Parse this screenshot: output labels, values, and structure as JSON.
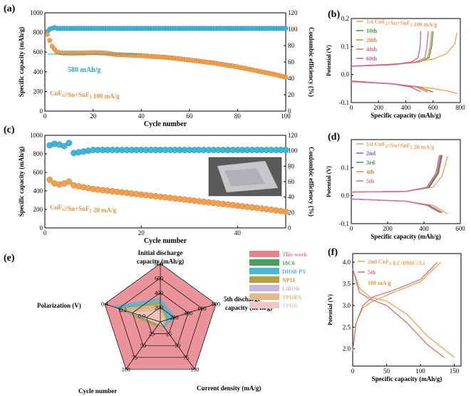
{
  "figure": {
    "panels": [
      {
        "id": "a",
        "label": "(a)"
      },
      {
        "id": "b",
        "label": "(b)"
      },
      {
        "id": "c",
        "label": "(c)"
      },
      {
        "id": "d",
        "label": "(d)"
      },
      {
        "id": "e",
        "label": "(e)"
      },
      {
        "id": "f",
        "label": "(f)"
      }
    ]
  },
  "chart_data": [
    {
      "panel": "a",
      "type": "scatter",
      "xlabel": "Cycle number",
      "ylabel": "Specific capacity (mAh/g)",
      "ylabel2": "Coulombic efficiency (%)",
      "xlim": [
        0,
        100
      ],
      "ylim": [
        0,
        1000
      ],
      "ylim2": [
        0,
        120
      ],
      "xticks": [
        "0",
        "20",
        "40",
        "60",
        "80",
        "100"
      ],
      "yticks": [
        "0",
        "200",
        "400",
        "600",
        "800",
        "1000"
      ],
      "yticks2": [
        "0",
        "20",
        "40",
        "60",
        "80",
        "100",
        "120"
      ],
      "annotations": [
        "580 mAh/g"
      ],
      "legend": "CuF2//Sn+SnF2 100 mA/g",
      "series": [
        {
          "name": "Specific capacity",
          "color": "#f0a050",
          "axis": "left",
          "x": [
            1,
            2,
            3,
            5,
            8,
            10,
            15,
            20,
            25,
            30,
            35,
            40,
            45,
            50,
            55,
            60,
            65,
            70,
            75,
            80,
            85,
            90,
            95,
            100
          ],
          "y": [
            780,
            720,
            660,
            600,
            590,
            590,
            590,
            595,
            590,
            575,
            570,
            565,
            555,
            548,
            535,
            520,
            505,
            490,
            470,
            450,
            425,
            400,
            375,
            345
          ]
        },
        {
          "name": "Coulombic efficiency",
          "color": "#3fb5d8",
          "axis": "right",
          "x": [
            1,
            2,
            3,
            4,
            5,
            10,
            20,
            40,
            60,
            80,
            100
          ],
          "y": [
            97,
            100,
            101,
            102,
            101,
            101,
            101,
            101,
            101,
            101,
            101
          ]
        }
      ]
    },
    {
      "panel": "b",
      "type": "line",
      "xlabel": "Specific capacity (mAh/g)",
      "ylabel": "Potential (V)",
      "xlim": [
        0,
        800
      ],
      "ylim": [
        -0.1,
        0.2
      ],
      "xticks": [
        "0",
        "200",
        "400",
        "600",
        "800"
      ],
      "yticks": [
        "-0.1",
        "0.0",
        "0.1",
        "0.2"
      ],
      "legend": [
        "1st CuF2//Sn+SnF2 100 mA/g",
        "10th",
        "20th",
        "40th",
        "60th"
      ],
      "series": [
        {
          "name": "1st",
          "color": "#f0a050",
          "charge": [
            [
              0,
              0.03
            ],
            [
              200,
              0.035
            ],
            [
              400,
              0.04
            ],
            [
              600,
              0.055
            ],
            [
              700,
              0.075
            ],
            [
              760,
              0.11
            ],
            [
              775,
              0.15
            ]
          ],
          "discharge": [
            [
              0,
              -0.022
            ],
            [
              200,
              -0.03
            ],
            [
              400,
              -0.038
            ],
            [
              600,
              -0.05
            ],
            [
              700,
              -0.058
            ],
            [
              780,
              -0.068
            ]
          ]
        },
        {
          "name": "10th",
          "color": "#3a9a48",
          "charge": [
            [
              0,
              0.03
            ],
            [
              300,
              0.035
            ],
            [
              500,
              0.045
            ],
            [
              570,
              0.06
            ],
            [
              590,
              0.1
            ],
            [
              600,
              0.155
            ]
          ],
          "discharge": [
            [
              0,
              -0.025
            ],
            [
              300,
              -0.033
            ],
            [
              500,
              -0.045
            ],
            [
              600,
              -0.062
            ]
          ]
        },
        {
          "name": "20th",
          "color": "#e8823a",
          "charge": [
            [
              0,
              0.03
            ],
            [
              300,
              0.035
            ],
            [
              500,
              0.045
            ],
            [
              560,
              0.06
            ],
            [
              580,
              0.1
            ],
            [
              590,
              0.155
            ]
          ],
          "discharge": [
            [
              0,
              -0.025
            ],
            [
              300,
              -0.033
            ],
            [
              500,
              -0.045
            ],
            [
              590,
              -0.062
            ]
          ]
        },
        {
          "name": "40th",
          "color": "#d8707a",
          "charge": [
            [
              0,
              0.03
            ],
            [
              300,
              0.035
            ],
            [
              480,
              0.045
            ],
            [
              540,
              0.06
            ],
            [
              555,
              0.1
            ],
            [
              565,
              0.155
            ]
          ],
          "discharge": [
            [
              0,
              -0.025
            ],
            [
              300,
              -0.033
            ],
            [
              480,
              -0.045
            ],
            [
              560,
              -0.062
            ]
          ]
        },
        {
          "name": "60th",
          "color": "#c060b0",
          "charge": [
            [
              0,
              0.03
            ],
            [
              300,
              0.035
            ],
            [
              440,
              0.045
            ],
            [
              490,
              0.06
            ],
            [
              505,
              0.1
            ],
            [
              510,
              0.155
            ]
          ],
          "discharge": [
            [
              0,
              -0.025
            ],
            [
              300,
              -0.033
            ],
            [
              440,
              -0.045
            ],
            [
              510,
              -0.062
            ]
          ]
        }
      ]
    },
    {
      "panel": "c",
      "type": "scatter",
      "xlabel": "Cycle number",
      "ylabel": "Specific capacity (mAh/g)",
      "ylabel2": "Coulombic efficiency (%)",
      "xlim": [
        0,
        50
      ],
      "ylim": [
        0,
        1000
      ],
      "ylim2": [
        0,
        120
      ],
      "xticks": [
        "0",
        "20",
        "40"
      ],
      "yticks": [
        "0",
        "200",
        "400",
        "600",
        "800",
        "1000"
      ],
      "yticks2": [
        "0",
        "20",
        "40",
        "60",
        "80",
        "100",
        "120"
      ],
      "legend": "CuF2//Sn+SnF2 20 mA/g",
      "series": [
        {
          "name": "Specific capacity",
          "color": "#f0a050",
          "axis": "left",
          "x": [
            1,
            2,
            3,
            4,
            5,
            6,
            8,
            10,
            15,
            20,
            25,
            30,
            35,
            40,
            45,
            50
          ],
          "y": [
            520,
            480,
            470,
            480,
            500,
            460,
            440,
            420,
            390,
            360,
            330,
            300,
            270,
            240,
            210,
            175
          ]
        },
        {
          "name": "Coulombic efficiency",
          "color": "#3fb5d8",
          "axis": "right",
          "x": [
            1,
            2,
            3,
            4,
            5,
            6,
            8,
            10,
            20,
            30,
            40,
            50
          ],
          "y": [
            107,
            109,
            108,
            106,
            110,
            97,
            99,
            101,
            101,
            101,
            101,
            101
          ]
        }
      ]
    },
    {
      "panel": "d",
      "type": "line",
      "xlabel": "Specific capacity (mAh/g)",
      "ylabel": "Potential (V)",
      "xlim": [
        0,
        600
      ],
      "ylim": [
        -0.1,
        0.2
      ],
      "xticks": [
        "0",
        "200",
        "400",
        "600"
      ],
      "yticks": [
        "-0.1",
        "0.0",
        "0.1"
      ],
      "legend": [
        "1st CuF2//Sn+SnF2 20 mA/g",
        "2nd",
        "3rd",
        "4th",
        "5th"
      ],
      "series": [
        {
          "name": "1st",
          "color": "#f0a050",
          "charge": [
            [
              0,
              0.013
            ],
            [
              300,
              0.015
            ],
            [
              450,
              0.03
            ],
            [
              500,
              0.07
            ],
            [
              530,
              0.14
            ]
          ],
          "discharge": [
            [
              0,
              -0.012
            ],
            [
              300,
              -0.02
            ],
            [
              450,
              -0.035
            ],
            [
              530,
              -0.065
            ]
          ]
        },
        {
          "name": "2nd",
          "color": "#8a5ab8",
          "charge": [
            [
              0,
              0.013
            ],
            [
              300,
              0.015
            ],
            [
              430,
              0.03
            ],
            [
              480,
              0.08
            ],
            [
              500,
              0.145
            ]
          ],
          "discharge": [
            [
              0,
              -0.012
            ],
            [
              300,
              -0.02
            ],
            [
              430,
              -0.035
            ],
            [
              500,
              -0.06
            ]
          ]
        },
        {
          "name": "3rd",
          "color": "#3a9a48",
          "charge": [
            [
              0,
              0.013
            ],
            [
              300,
              0.015
            ],
            [
              425,
              0.03
            ],
            [
              475,
              0.08
            ],
            [
              495,
              0.145
            ]
          ],
          "discharge": [
            [
              0,
              -0.012
            ],
            [
              300,
              -0.02
            ],
            [
              425,
              -0.035
            ],
            [
              495,
              -0.06
            ]
          ]
        },
        {
          "name": "4th",
          "color": "#e8823a",
          "charge": [
            [
              0,
              0.013
            ],
            [
              300,
              0.015
            ],
            [
              420,
              0.03
            ],
            [
              470,
              0.08
            ],
            [
              490,
              0.145
            ]
          ],
          "discharge": [
            [
              0,
              -0.012
            ],
            [
              300,
              -0.02
            ],
            [
              420,
              -0.035
            ],
            [
              490,
              -0.06
            ]
          ]
        },
        {
          "name": "5th",
          "color": "#d070b8",
          "charge": [
            [
              0,
              0.013
            ],
            [
              300,
              0.015
            ],
            [
              415,
              0.03
            ],
            [
              465,
              0.08
            ],
            [
              485,
              0.145
            ]
          ],
          "discharge": [
            [
              0,
              -0.012
            ],
            [
              300,
              -0.02
            ],
            [
              415,
              -0.035
            ],
            [
              485,
              -0.06
            ]
          ]
        }
      ]
    },
    {
      "panel": "e",
      "type": "radar",
      "axes": [
        {
          "name": "Initial discharge capacity (mAh/g)",
          "ticks": [
            "200",
            "400",
            "600",
            "800"
          ],
          "max": 800
        },
        {
          "name": "5th discharge capacity (mAh/g)",
          "ticks": [
            "200",
            "400",
            "600",
            "800"
          ],
          "max": 800
        },
        {
          "name": "Current  density (mA/g)",
          "ticks": [
            "25",
            "50",
            "75",
            "100"
          ],
          "max": 100
        },
        {
          "name": "Cycle number",
          "ticks": [
            "25",
            "50",
            "75",
            "100"
          ],
          "max": 100
        },
        {
          "name": "Polarization (V)",
          "ticks": [
            "0.0",
            "0.2",
            "0.4"
          ],
          "max": 0.4
        }
      ],
      "series": [
        {
          "name": "This work",
          "color": "#e8808a",
          "values": [
            800,
            800,
            100,
            100,
            0.4
          ]
        },
        {
          "name": "18C6",
          "color": "#4aa05a",
          "values": [
            260,
            120,
            8,
            10,
            0.32
          ]
        },
        {
          "name": "DIOB-PY",
          "color": "#4ab8d0",
          "values": [
            330,
            220,
            12,
            8,
            0.35
          ]
        },
        {
          "name": "NP1F",
          "color": "#b8a040",
          "values": [
            280,
            100,
            8,
            10,
            0.28
          ]
        },
        {
          "name": "LiBOB",
          "color": "#c8b8e0",
          "values": [
            200,
            80,
            5,
            5,
            0.25
          ]
        },
        {
          "name": "TPHBX",
          "color": "#e8b888",
          "values": [
            240,
            90,
            10,
            5,
            0.3
          ]
        },
        {
          "name": "TPHB",
          "color": "#f0c8c8",
          "values": [
            150,
            70,
            5,
            5,
            0.22
          ]
        }
      ]
    },
    {
      "panel": "f",
      "type": "line",
      "xlabel": "Specific capacity (mAh/g)",
      "ylabel": "Potential (V)",
      "xlim": [
        0,
        160
      ],
      "ylim": [
        1.6,
        4.2
      ],
      "xticks": [
        "0",
        "50",
        "100",
        "150"
      ],
      "yticks": [
        "2.0",
        "2.5",
        "3.0",
        "3.5",
        "4.0"
      ],
      "legend": [
        "2nd  CuF2-EC/DMC//Li",
        "5th",
        "100 mA/g"
      ],
      "series": [
        {
          "name": "2nd",
          "color": "#f0a050",
          "charge": [
            [
              0,
              1.95
            ],
            [
              5,
              2.6
            ],
            [
              15,
              2.95
            ],
            [
              30,
              3.1
            ],
            [
              60,
              3.3
            ],
            [
              100,
              3.55
            ],
            [
              130,
              4.0
            ]
          ],
          "discharge": [
            [
              0,
              3.85
            ],
            [
              10,
              3.4
            ],
            [
              25,
              3.2
            ],
            [
              50,
              3.1
            ],
            [
              80,
              2.8
            ],
            [
              110,
              2.3
            ],
            [
              150,
              1.8
            ]
          ]
        },
        {
          "name": "5th",
          "color": "#d8707a",
          "charge": [
            [
              0,
              1.95
            ],
            [
              5,
              2.6
            ],
            [
              15,
              3.0
            ],
            [
              30,
              3.2
            ],
            [
              60,
              3.35
            ],
            [
              100,
              3.6
            ],
            [
              125,
              4.0
            ]
          ],
          "discharge": [
            [
              0,
              3.85
            ],
            [
              10,
              3.3
            ],
            [
              25,
              3.15
            ],
            [
              50,
              3.0
            ],
            [
              80,
              2.6
            ],
            [
              110,
              2.1
            ],
            [
              135,
              1.8
            ]
          ]
        }
      ]
    }
  ]
}
